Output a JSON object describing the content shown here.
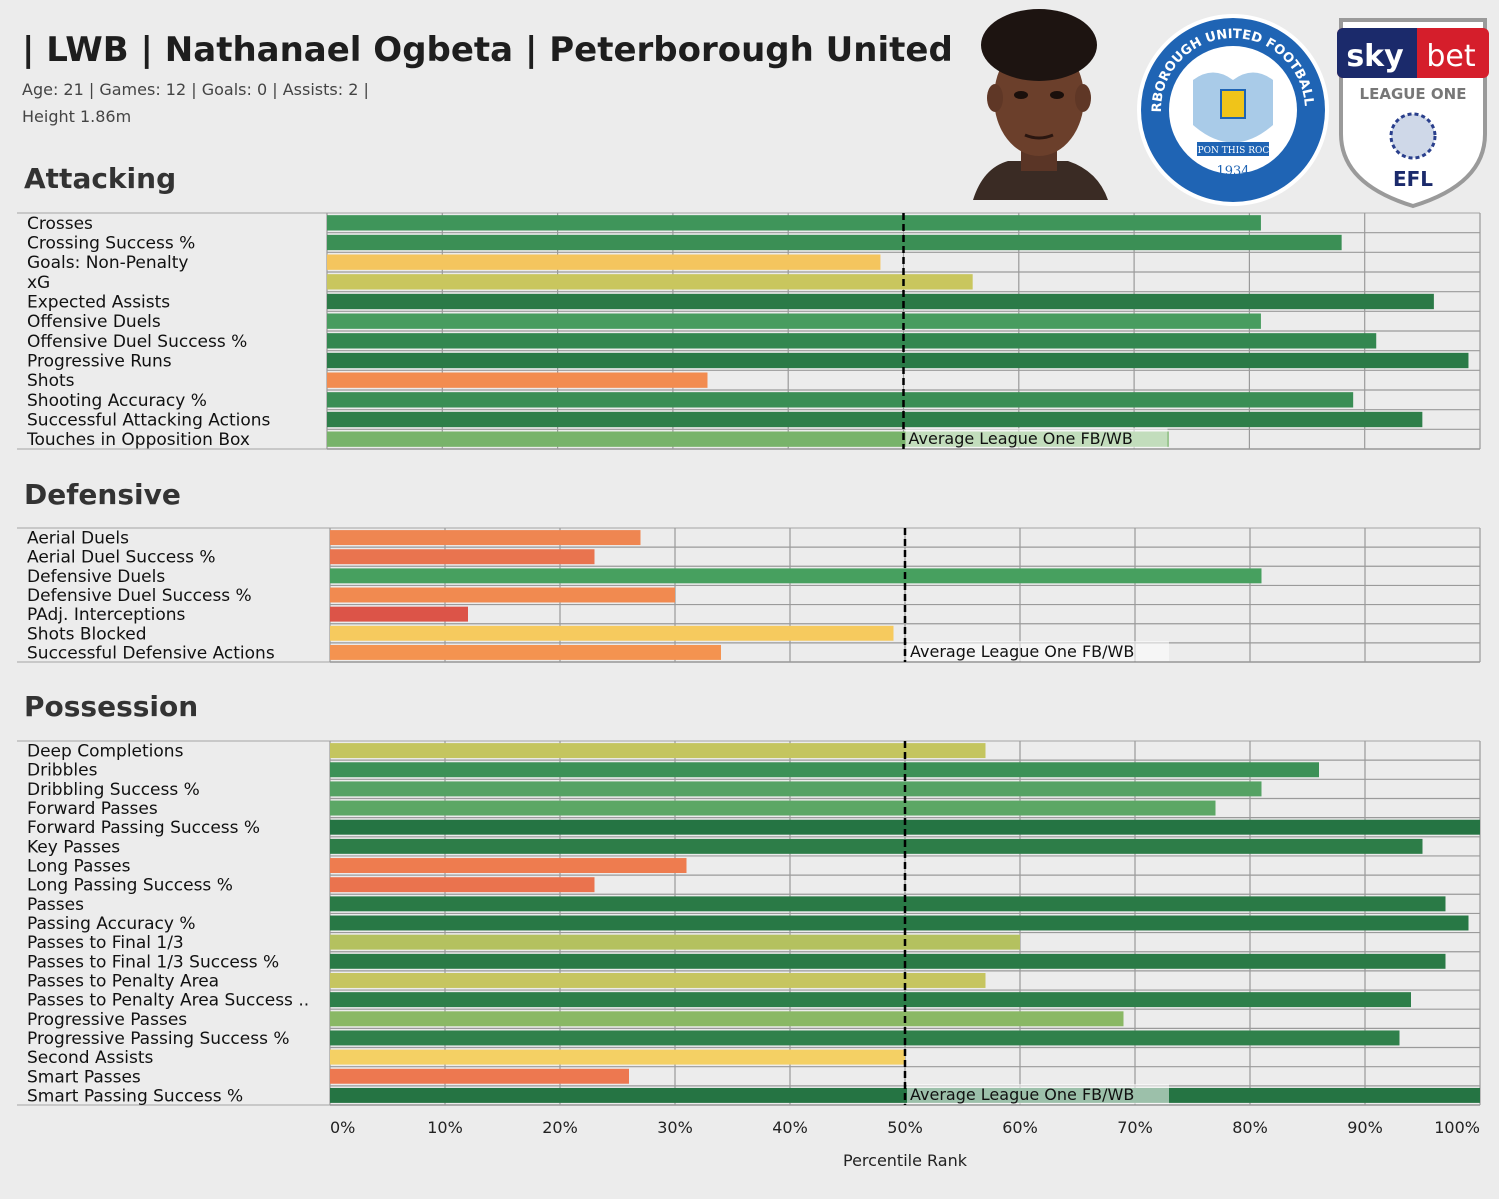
{
  "header": {
    "title": "| LWB | Nathanael Ogbeta | Peterborough United |",
    "line1": "Age: 21 | Games: 12 | Goals: 0 | Assists: 2 |",
    "line2": "Height 1.86m"
  },
  "logos": {
    "club_top": "PETERBOROUGH UNITED FOOTBALL CLUB",
    "club_motto": "UPON THIS ROCK",
    "club_year": "1934",
    "sky": "sky",
    "bet": "bet",
    "league_one": "LEAGUE ONE",
    "efl": "EFL"
  },
  "colors": {
    "background": "#ececec",
    "average_line": "#000000",
    "gridline": "#9a9a9a"
  },
  "chart_data": {
    "type": "bar",
    "orientation": "horizontal",
    "xlabel": "Percentile Rank",
    "xlim": [
      0,
      100
    ],
    "x_ticks": [
      "0%",
      "10%",
      "20%",
      "30%",
      "40%",
      "50%",
      "60%",
      "70%",
      "80%",
      "90%",
      "100%"
    ],
    "reference_line": {
      "value": 50,
      "label": "Average League One FB/WB"
    },
    "grid": true,
    "panels": [
      {
        "title": "Attacking",
        "items": [
          {
            "label": "Crosses",
            "value": 81,
            "color": "#3f955a"
          },
          {
            "label": "Crossing Success %",
            "value": 88,
            "color": "#3b8f55"
          },
          {
            "label": "Goals: Non-Penalty",
            "value": 48,
            "color": "#f4c55e"
          },
          {
            "label": "xG",
            "value": 56,
            "color": "#c9c65e"
          },
          {
            "label": "Expected Assists",
            "value": 96,
            "color": "#2b7a47"
          },
          {
            "label": "Offensive Duels",
            "value": 81,
            "color": "#489c5f"
          },
          {
            "label": "Offensive Duel Success %",
            "value": 91,
            "color": "#338750"
          },
          {
            "label": "Progressive Runs",
            "value": 99,
            "color": "#2a7a47"
          },
          {
            "label": "Shots",
            "value": 33,
            "color": "#f28c50"
          },
          {
            "label": "Shooting Accuracy %",
            "value": 89,
            "color": "#3a8e55"
          },
          {
            "label": "Successful Attacking Actions",
            "value": 95,
            "color": "#2e7f4a"
          },
          {
            "label": "Touches in Opposition Box",
            "value": 73,
            "color": "#78b36a"
          }
        ]
      },
      {
        "title": "Defensive",
        "items": [
          {
            "label": "Aerial Duels",
            "value": 27,
            "color": "#ef8651"
          },
          {
            "label": "Aerial Duel Success %",
            "value": 23,
            "color": "#e9744f"
          },
          {
            "label": "Defensive Duels",
            "value": 81,
            "color": "#47a05f"
          },
          {
            "label": "Defensive Duel Success %",
            "value": 30,
            "color": "#f18a50"
          },
          {
            "label": "PAdj. Interceptions",
            "value": 12,
            "color": "#dc5448"
          },
          {
            "label": "Shots Blocked",
            "value": 49,
            "color": "#f6ca5e"
          },
          {
            "label": "Successful Defensive Actions",
            "value": 34,
            "color": "#f49350"
          }
        ]
      },
      {
        "title": "Possession",
        "items": [
          {
            "label": "Deep Completions",
            "value": 57,
            "color": "#c4c55f"
          },
          {
            "label": "Dribbles",
            "value": 86,
            "color": "#3d9157"
          },
          {
            "label": "Dribbling Success %",
            "value": 81,
            "color": "#55a264"
          },
          {
            "label": "Forward Passes",
            "value": 77,
            "color": "#5ca765"
          },
          {
            "label": "Forward Passing Success %",
            "value": 100,
            "color": "#257443"
          },
          {
            "label": "Key Passes",
            "value": 95,
            "color": "#2d7d48"
          },
          {
            "label": "Long Passes",
            "value": 31,
            "color": "#ee7c4f"
          },
          {
            "label": "Long Passing Success %",
            "value": 23,
            "color": "#ea734e"
          },
          {
            "label": "Passes",
            "value": 97,
            "color": "#2a7a46"
          },
          {
            "label": "Passing Accuracy %",
            "value": 99,
            "color": "#287845"
          },
          {
            "label": "Passes to Final 1/3",
            "value": 60,
            "color": "#b4c15f"
          },
          {
            "label": "Passes to Final 1/3 Success %",
            "value": 97,
            "color": "#2a7a46"
          },
          {
            "label": "Passes to Penalty Area",
            "value": 57,
            "color": "#c6c560"
          },
          {
            "label": "Passes to Penalty Area Success ..",
            "value": 94,
            "color": "#2e7f4a"
          },
          {
            "label": "Progressive Passes",
            "value": 69,
            "color": "#8ab865"
          },
          {
            "label": "Progressive Passing Success %",
            "value": 93,
            "color": "#30814b"
          },
          {
            "label": "Second Assists",
            "value": 50,
            "color": "#f4d064"
          },
          {
            "label": "Smart Passes",
            "value": 26,
            "color": "#ed7850"
          },
          {
            "label": "Smart Passing Success %",
            "value": 100,
            "color": "#257443"
          }
        ]
      }
    ]
  }
}
